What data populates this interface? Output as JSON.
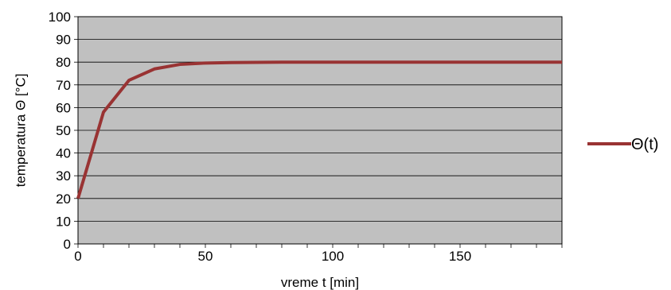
{
  "chart_data": {
    "type": "line",
    "xlabel": "vreme t [min]",
    "ylabel": "temperatura Θ [°C]",
    "xlim": [
      0,
      190
    ],
    "ylim": [
      0,
      100
    ],
    "x_ticks": [
      0,
      50,
      100,
      150
    ],
    "x_minor_step": 10,
    "y_ticks": [
      0,
      10,
      20,
      30,
      40,
      50,
      60,
      70,
      80,
      90,
      100
    ],
    "grid": "horizontal",
    "plot_background": "#c0c0c0",
    "legend_position": "right",
    "series": [
      {
        "name": "Θ(t)",
        "color": "#993333",
        "x": [
          0,
          10,
          20,
          30,
          40,
          50,
          60,
          70,
          80,
          90,
          100,
          110,
          120,
          130,
          140,
          150,
          160,
          170,
          180,
          190
        ],
        "y": [
          20,
          58,
          72,
          77,
          79,
          79.6,
          79.8,
          79.9,
          80,
          80,
          80,
          80,
          80,
          80,
          80,
          80,
          80,
          80,
          80,
          80
        ]
      }
    ]
  }
}
